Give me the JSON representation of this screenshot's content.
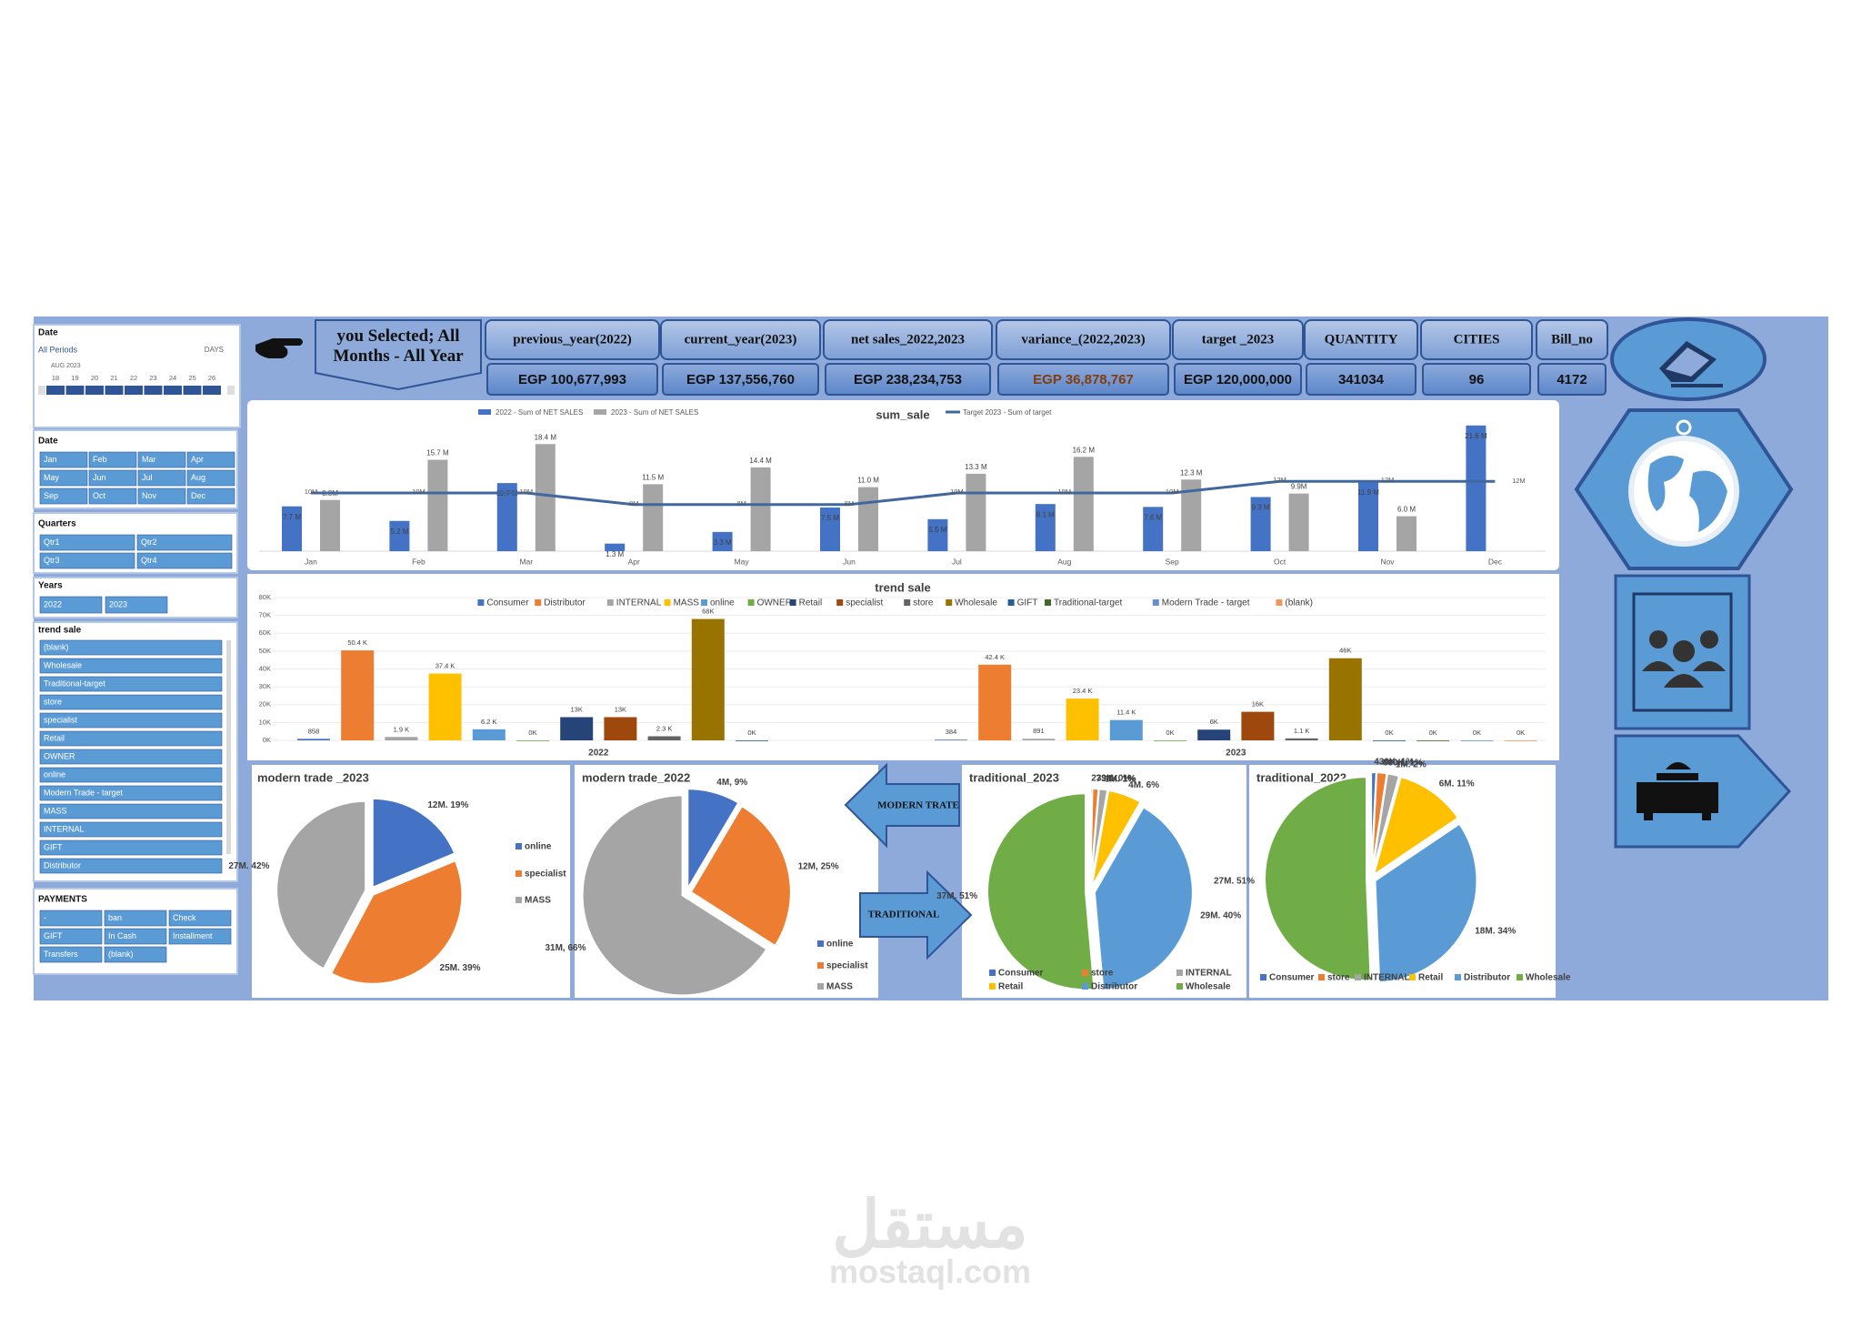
{
  "header": {
    "selection": "you Selected; All Months - All Year"
  },
  "kpis": [
    {
      "label": "previous_year(2022)",
      "value": "EGP 100,677,993"
    },
    {
      "label": "current_year(2023)",
      "value": "EGP 137,556,760"
    },
    {
      "label": "net sales_2022,2023",
      "value": "EGP 238,234,753"
    },
    {
      "label": "variance_(2022,2023)",
      "value": "EGP 36,878,767"
    },
    {
      "label": "target _2023",
      "value": "EGP 120,000,000"
    },
    {
      "label": "QUANTITY",
      "value": "341034"
    },
    {
      "label": "CITIES",
      "value": "96"
    },
    {
      "label": "Bill_no",
      "value": "4172"
    }
  ],
  "slicers": {
    "timeline": {
      "title": "Date",
      "period": "All Periods",
      "level": "DAYS",
      "month": "AUG 2023",
      "days": [
        "18",
        "19",
        "20",
        "21",
        "22",
        "23",
        "24",
        "25",
        "26"
      ]
    },
    "months": {
      "title": "Date",
      "items": [
        "Jan",
        "Feb",
        "Mar",
        "Apr",
        "May",
        "Jun",
        "Jul",
        "Aug",
        "Sep",
        "Oct",
        "Nov",
        "Dec"
      ]
    },
    "quarters": {
      "title": "Quarters",
      "items": [
        "Qtr1",
        "Qtr2",
        "Qtr3",
        "Qtr4"
      ]
    },
    "years": {
      "title": "Years",
      "items": [
        "2022",
        "2023"
      ]
    },
    "trend_sale": {
      "title": "trend sale",
      "items": [
        "(blank)",
        "Wholesale",
        "Traditional-target",
        "store",
        "specialist",
        "Retail",
        "OWNER",
        "online",
        "Modern Trade - target",
        "MASS",
        "INTERNAL",
        "GIFT",
        "Distributor"
      ]
    },
    "payments": {
      "title": "PAYMENTS",
      "items": [
        "-",
        "ban",
        "Check",
        "GIFT",
        "In Cash",
        "Installment",
        "Transfers",
        "(blank)"
      ]
    }
  },
  "navigation": {
    "modern": "MODERN TRATE",
    "traditional": "TRADITIONAL"
  },
  "chart_data": [
    {
      "type": "bar",
      "title": "sum_sale",
      "categories": [
        "Jan",
        "Feb",
        "Mar",
        "Apr",
        "May",
        "Jun",
        "Jul",
        "Aug",
        "Sep",
        "Oct",
        "Nov",
        "Dec"
      ],
      "series": [
        {
          "name": "2022 - Sum of NET SALES",
          "color": "#4472c4",
          "values": [
            7.7,
            5.2,
            11.7,
            1.3,
            3.3,
            7.5,
            5.5,
            8.1,
            7.6,
            9.3,
            11.9,
            21.6
          ],
          "value_labels": [
            "7.7 M",
            "5.2 M",
            "11.7 M",
            "1.3 M",
            "3.3 M",
            "7.5 M",
            "5.5 M",
            "8.1 M",
            "7.6 M",
            "9.3 M",
            "11.9 M",
            "21.6 M"
          ]
        },
        {
          "name": "2023 - Sum of NET SALES",
          "color": "#a5a5a5",
          "values": [
            8.8,
            15.7,
            18.4,
            11.5,
            14.4,
            11.0,
            13.3,
            16.2,
            12.3,
            9.9,
            6.0,
            null
          ],
          "value_labels": [
            "8.8M",
            "15.7 M",
            "18.4 M",
            "11.5 M",
            "14.4 M",
            "11.0 M",
            "13.3 M",
            "16.2 M",
            "12.3 M",
            "9.9M",
            "6.0 M",
            null
          ]
        },
        {
          "name": "Target 2023 - Sum of target",
          "color": "#41689e",
          "type": "line",
          "values": [
            10,
            10,
            10,
            8,
            8,
            8,
            10,
            10,
            10,
            12,
            12,
            12
          ],
          "value_labels": [
            "10M",
            "10M",
            "10M",
            "8M",
            "8M",
            "8M",
            "10M",
            "10M",
            "10M",
            "12M",
            "12M",
            "12M"
          ]
        }
      ]
    },
    {
      "type": "bar",
      "title": "trend sale",
      "categories": [
        "2022",
        "2023"
      ],
      "ylim": [
        0,
        80000
      ],
      "yticks": [
        {
          "value": 0,
          "label": "0K"
        },
        {
          "value": 10000,
          "label": "10K"
        },
        {
          "value": 20000,
          "label": "20K"
        },
        {
          "value": 30000,
          "label": "30K"
        },
        {
          "value": 40000,
          "label": "40K"
        },
        {
          "value": 50000,
          "label": "50K"
        },
        {
          "value": 60000,
          "label": "60K"
        },
        {
          "value": 70000,
          "label": "70K"
        },
        {
          "value": 80000,
          "label": "80K"
        }
      ],
      "grid": true,
      "series": [
        {
          "name": "Consumer",
          "color": "#4472c4",
          "values": [
            858,
            384
          ],
          "value_labels": [
            "858",
            "384"
          ]
        },
        {
          "name": "Distributor",
          "color": "#ed7d31",
          "values": [
            50400,
            42400
          ],
          "value_labels": [
            "50.4 K",
            "42.4 K"
          ]
        },
        {
          "name": "INTERNAL",
          "color": "#a5a5a5",
          "values": [
            1900,
            891
          ],
          "value_labels": [
            "1.9 K",
            "891"
          ]
        },
        {
          "name": "MASS",
          "color": "#ffc000",
          "values": [
            37400,
            23400
          ],
          "value_labels": [
            "37.4 K",
            "23.4 K"
          ]
        },
        {
          "name": "online",
          "color": "#5b9bd5",
          "values": [
            6200,
            11400
          ],
          "value_labels": [
            "6.2 K",
            "11.4 K"
          ]
        },
        {
          "name": "OWNER",
          "color": "#70ad47",
          "values": [
            0,
            0
          ],
          "value_labels": [
            "0K",
            "0K"
          ]
        },
        {
          "name": "Retail",
          "color": "#264478",
          "values": [
            13000,
            6000
          ],
          "value_labels": [
            "13K",
            "6K"
          ]
        },
        {
          "name": "specialist",
          "color": "#9e480e",
          "values": [
            13000,
            16000
          ],
          "value_labels": [
            "13K",
            "16K"
          ]
        },
        {
          "name": "store",
          "color": "#636363",
          "values": [
            2300,
            1100
          ],
          "value_labels": [
            "2.3 K",
            "1.1 K"
          ]
        },
        {
          "name": "Wholesale",
          "color": "#997300",
          "values": [
            68000,
            46000
          ],
          "value_labels": [
            "68K",
            "46K"
          ]
        },
        {
          "name": "GIFT",
          "color": "#255e91",
          "values": [
            0,
            0
          ],
          "value_labels": [
            "0K",
            "0K"
          ]
        },
        {
          "name": "Traditional-target",
          "color": "#43682b",
          "values": [
            null,
            0
          ],
          "value_labels": [
            null,
            "0K"
          ]
        },
        {
          "name": "Modern Trade - target",
          "color": "#698ed0",
          "values": [
            null,
            0
          ],
          "value_labels": [
            null,
            "0K"
          ]
        },
        {
          "name": "(blank)",
          "color": "#f1975a",
          "values": [
            null,
            0
          ],
          "value_labels": [
            null,
            "0K"
          ]
        }
      ]
    },
    {
      "type": "pie",
      "title": "modern trade _2023",
      "categories": [
        "online",
        "specialist",
        "MASS"
      ],
      "values": [
        12,
        25,
        27
      ],
      "value_labels": [
        "12M. 19%",
        "25M. 39%",
        "27M. 42%"
      ],
      "colors": [
        "#4472c4",
        "#ed7d31",
        "#a5a5a5"
      ]
    },
    {
      "type": "pie",
      "title": "modern trade_2022",
      "categories": [
        "online",
        "specialist",
        "MASS"
      ],
      "values": [
        4,
        12,
        31
      ],
      "value_labels": [
        "4M, 9%",
        "12M, 25%",
        "31M, 66%"
      ],
      "colors": [
        "#4472c4",
        "#ed7d31",
        "#a5a5a5"
      ]
    },
    {
      "type": "pie",
      "title": "traditional_2023",
      "categories": [
        "Consumer",
        "store",
        "INTERNAL",
        "Retail",
        "Distributor",
        "Wholesale"
      ],
      "values": [
        0.239,
        0.734,
        1,
        4,
        29,
        37
      ],
      "value_labels": [
        "239K. 0%",
        "734K. 1%",
        "1M. 1%",
        "4M. 6%",
        "29M. 40%",
        "37M. 51%"
      ],
      "colors": [
        "#4472c4",
        "#ed7d31",
        "#a5a5a5",
        "#ffc000",
        "#5b9bd5",
        "#70ad47"
      ]
    },
    {
      "type": "pie",
      "title": "traditional_2022",
      "categories": [
        "Consumer",
        "store",
        "INTERNAL",
        "Retail",
        "Distributor",
        "Wholesale"
      ],
      "values": [
        0.43,
        0.86,
        1,
        6,
        18,
        27
      ],
      "value_labels": [
        "430K. 1%",
        "860K. 1%",
        "1M. 2%",
        "6M. 11%",
        "18M. 34%",
        "27M. 51%"
      ],
      "colors": [
        "#4472c4",
        "#ed7d31",
        "#a5a5a5",
        "#ffc000",
        "#5b9bd5",
        "#70ad47"
      ]
    }
  ],
  "watermark": {
    "arabic": "مستقل",
    "site": "mostaql.com"
  }
}
